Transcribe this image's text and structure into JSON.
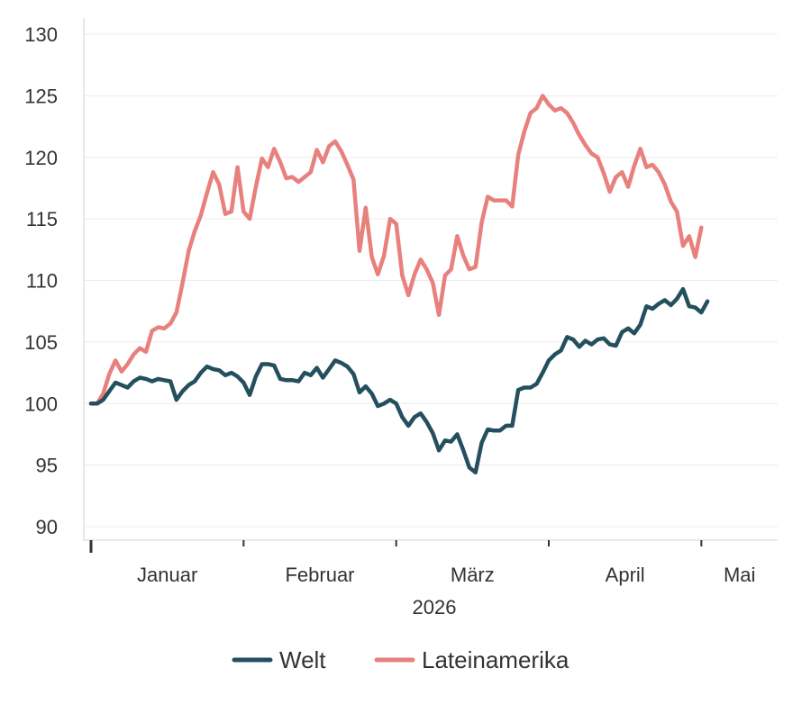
{
  "chart_data": {
    "type": "line",
    "ylim": [
      90,
      130
    ],
    "yticks": [
      90,
      95,
      100,
      105,
      110,
      115,
      120,
      125,
      130
    ],
    "month_labels": [
      {
        "label": "Januar",
        "x": 0.5
      },
      {
        "label": "Februar",
        "x": 1.5
      },
      {
        "label": "März",
        "x": 2.5
      },
      {
        "label": "April",
        "x": 3.5
      },
      {
        "label": "Mai",
        "x": 4.25
      }
    ],
    "month_boundaries": [
      1,
      2,
      3,
      4
    ],
    "x_end": 4.5,
    "year_label": "2026",
    "grid": true,
    "legend": "bottom-center",
    "series": [
      {
        "name": "Welt",
        "color": "#244f5e",
        "points": [
          [
            0.0,
            100.0
          ],
          [
            0.04,
            100.0
          ],
          [
            0.08,
            100.3
          ],
          [
            0.12,
            101.0
          ],
          [
            0.16,
            101.7
          ],
          [
            0.2,
            101.5
          ],
          [
            0.24,
            101.3
          ],
          [
            0.28,
            101.8
          ],
          [
            0.32,
            102.1
          ],
          [
            0.36,
            102.0
          ],
          [
            0.4,
            101.8
          ],
          [
            0.44,
            102.0
          ],
          [
            0.48,
            101.9
          ],
          [
            0.52,
            101.8
          ],
          [
            0.56,
            100.3
          ],
          [
            0.6,
            101.0
          ],
          [
            0.64,
            101.5
          ],
          [
            0.68,
            101.8
          ],
          [
            0.72,
            102.5
          ],
          [
            0.76,
            103.0
          ],
          [
            0.8,
            102.8
          ],
          [
            0.84,
            102.7
          ],
          [
            0.88,
            102.3
          ],
          [
            0.92,
            102.5
          ],
          [
            0.96,
            102.2
          ],
          [
            1.0,
            101.7
          ],
          [
            1.04,
            100.7
          ],
          [
            1.08,
            102.2
          ],
          [
            1.12,
            103.2
          ],
          [
            1.16,
            103.2
          ],
          [
            1.2,
            103.1
          ],
          [
            1.24,
            102.0
          ],
          [
            1.28,
            101.9
          ],
          [
            1.32,
            101.9
          ],
          [
            1.36,
            101.8
          ],
          [
            1.4,
            102.5
          ],
          [
            1.44,
            102.3
          ],
          [
            1.48,
            102.9
          ],
          [
            1.52,
            102.1
          ],
          [
            1.56,
            102.8
          ],
          [
            1.6,
            103.5
          ],
          [
            1.64,
            103.3
          ],
          [
            1.68,
            103.0
          ],
          [
            1.72,
            102.4
          ],
          [
            1.76,
            100.9
          ],
          [
            1.8,
            101.4
          ],
          [
            1.84,
            100.8
          ],
          [
            1.88,
            99.8
          ],
          [
            1.92,
            100.0
          ],
          [
            1.96,
            100.3
          ],
          [
            2.0,
            100.0
          ],
          [
            2.04,
            98.9
          ],
          [
            2.08,
            98.2
          ],
          [
            2.12,
            98.9
          ],
          [
            2.16,
            99.2
          ],
          [
            2.2,
            98.5
          ],
          [
            2.24,
            97.6
          ],
          [
            2.28,
            96.2
          ],
          [
            2.32,
            97.0
          ],
          [
            2.36,
            96.9
          ],
          [
            2.4,
            97.5
          ],
          [
            2.44,
            96.2
          ],
          [
            2.48,
            94.8
          ],
          [
            2.52,
            94.4
          ],
          [
            2.56,
            96.8
          ],
          [
            2.6,
            97.9
          ],
          [
            2.64,
            97.8
          ],
          [
            2.68,
            97.8
          ],
          [
            2.72,
            98.2
          ],
          [
            2.76,
            98.2
          ],
          [
            2.8,
            101.1
          ],
          [
            2.84,
            101.3
          ],
          [
            2.88,
            101.3
          ],
          [
            2.92,
            101.6
          ],
          [
            2.96,
            102.5
          ],
          [
            3.0,
            103.5
          ],
          [
            3.04,
            104.0
          ],
          [
            3.08,
            104.3
          ],
          [
            3.12,
            105.4
          ],
          [
            3.16,
            105.2
          ],
          [
            3.2,
            104.6
          ],
          [
            3.24,
            105.1
          ],
          [
            3.28,
            104.8
          ],
          [
            3.32,
            105.2
          ],
          [
            3.36,
            105.3
          ],
          [
            3.4,
            104.8
          ],
          [
            3.44,
            104.7
          ],
          [
            3.48,
            105.8
          ],
          [
            3.52,
            106.1
          ],
          [
            3.56,
            105.7
          ],
          [
            3.6,
            106.4
          ],
          [
            3.64,
            107.9
          ],
          [
            3.68,
            107.7
          ],
          [
            3.72,
            108.1
          ],
          [
            3.76,
            108.4
          ],
          [
            3.8,
            108.0
          ],
          [
            3.84,
            108.5
          ],
          [
            3.88,
            109.3
          ],
          [
            3.92,
            107.9
          ],
          [
            3.96,
            107.8
          ],
          [
            4.0,
            107.4
          ],
          [
            4.04,
            108.3
          ]
        ]
      },
      {
        "name": "Lateinamerika",
        "color": "#e8807d",
        "points": [
          [
            0.0,
            100.0
          ],
          [
            0.04,
            100.0
          ],
          [
            0.08,
            100.8
          ],
          [
            0.12,
            102.4
          ],
          [
            0.16,
            103.5
          ],
          [
            0.2,
            102.6
          ],
          [
            0.24,
            103.2
          ],
          [
            0.28,
            104.0
          ],
          [
            0.32,
            104.5
          ],
          [
            0.36,
            104.2
          ],
          [
            0.4,
            105.9
          ],
          [
            0.44,
            106.2
          ],
          [
            0.48,
            106.1
          ],
          [
            0.52,
            106.5
          ],
          [
            0.56,
            107.4
          ],
          [
            0.6,
            109.8
          ],
          [
            0.64,
            112.4
          ],
          [
            0.68,
            114.0
          ],
          [
            0.72,
            115.3
          ],
          [
            0.76,
            117.1
          ],
          [
            0.8,
            118.8
          ],
          [
            0.84,
            117.8
          ],
          [
            0.88,
            115.4
          ],
          [
            0.92,
            115.6
          ],
          [
            0.96,
            119.2
          ],
          [
            1.0,
            115.6
          ],
          [
            1.04,
            115.0
          ],
          [
            1.08,
            117.6
          ],
          [
            1.12,
            119.9
          ],
          [
            1.16,
            119.2
          ],
          [
            1.2,
            120.7
          ],
          [
            1.24,
            119.6
          ],
          [
            1.28,
            118.3
          ],
          [
            1.32,
            118.4
          ],
          [
            1.36,
            118.0
          ],
          [
            1.4,
            118.4
          ],
          [
            1.44,
            118.8
          ],
          [
            1.48,
            120.6
          ],
          [
            1.52,
            119.6
          ],
          [
            1.56,
            120.9
          ],
          [
            1.6,
            121.3
          ],
          [
            1.64,
            120.5
          ],
          [
            1.68,
            119.4
          ],
          [
            1.72,
            118.2
          ],
          [
            1.76,
            112.4
          ],
          [
            1.8,
            115.9
          ],
          [
            1.84,
            111.9
          ],
          [
            1.88,
            110.5
          ],
          [
            1.92,
            112.0
          ],
          [
            1.96,
            115.0
          ],
          [
            2.0,
            114.6
          ],
          [
            2.04,
            110.4
          ],
          [
            2.08,
            108.8
          ],
          [
            2.12,
            110.5
          ],
          [
            2.16,
            111.7
          ],
          [
            2.2,
            110.9
          ],
          [
            2.24,
            109.8
          ],
          [
            2.28,
            107.2
          ],
          [
            2.32,
            110.4
          ],
          [
            2.36,
            110.9
          ],
          [
            2.4,
            113.6
          ],
          [
            2.44,
            112.0
          ],
          [
            2.48,
            110.9
          ],
          [
            2.52,
            111.1
          ],
          [
            2.56,
            114.7
          ],
          [
            2.6,
            116.8
          ],
          [
            2.64,
            116.5
          ],
          [
            2.68,
            116.5
          ],
          [
            2.72,
            116.5
          ],
          [
            2.76,
            116.0
          ],
          [
            2.8,
            120.2
          ],
          [
            2.84,
            122.1
          ],
          [
            2.88,
            123.6
          ],
          [
            2.92,
            124.0
          ],
          [
            2.96,
            125.0
          ],
          [
            3.0,
            124.3
          ],
          [
            3.04,
            123.8
          ],
          [
            3.08,
            124.0
          ],
          [
            3.12,
            123.6
          ],
          [
            3.16,
            122.8
          ],
          [
            3.2,
            121.8
          ],
          [
            3.24,
            121.0
          ],
          [
            3.28,
            120.3
          ],
          [
            3.32,
            120.0
          ],
          [
            3.36,
            118.7
          ],
          [
            3.4,
            117.2
          ],
          [
            3.44,
            118.4
          ],
          [
            3.48,
            118.8
          ],
          [
            3.52,
            117.6
          ],
          [
            3.56,
            119.3
          ],
          [
            3.6,
            120.7
          ],
          [
            3.64,
            119.2
          ],
          [
            3.68,
            119.4
          ],
          [
            3.72,
            118.8
          ],
          [
            3.76,
            117.8
          ],
          [
            3.8,
            116.4
          ],
          [
            3.84,
            115.6
          ],
          [
            3.88,
            112.8
          ],
          [
            3.92,
            113.6
          ],
          [
            3.96,
            111.9
          ],
          [
            4.0,
            114.3
          ]
        ]
      }
    ]
  }
}
